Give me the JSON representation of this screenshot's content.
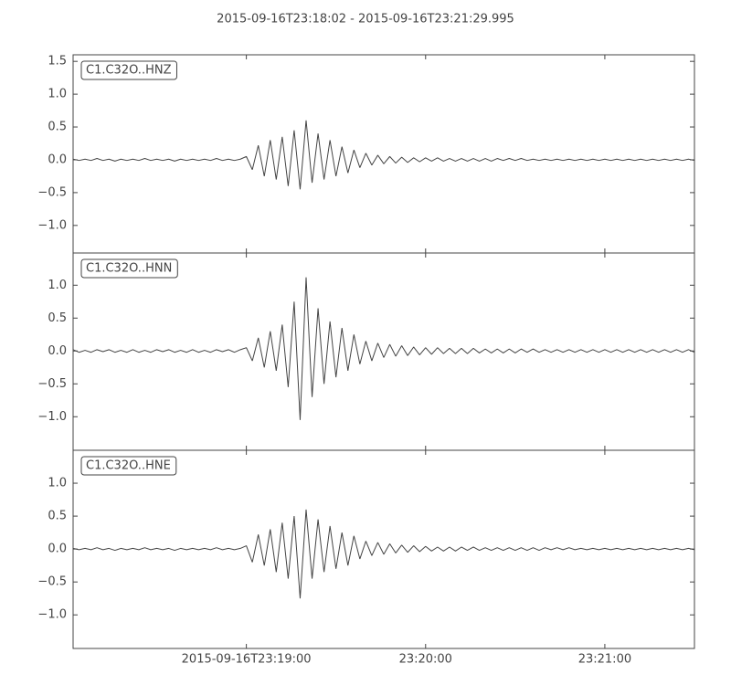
{
  "chart_data": {
    "type": "line",
    "title": "2015-09-16T23:18:02  -  2015-09-16T23:21:29.995",
    "color": "#444444",
    "x": [
      0,
      2,
      4,
      6,
      8,
      10,
      12,
      14,
      16,
      18,
      20,
      22,
      24,
      26,
      28,
      30,
      32,
      34,
      36,
      38,
      40,
      42,
      44,
      46,
      48,
      50,
      52,
      54,
      56,
      58,
      60,
      62,
      64,
      66,
      68,
      70,
      72,
      74,
      76,
      78,
      80,
      82,
      84,
      86,
      88,
      90,
      92,
      94,
      96,
      98,
      100,
      102,
      104,
      106,
      108,
      110,
      112,
      114,
      116,
      118,
      120,
      122,
      124,
      126,
      128,
      130,
      132,
      134,
      136,
      138,
      140,
      142,
      144,
      146,
      148,
      150,
      152,
      154,
      156,
      158,
      160,
      162,
      164,
      166,
      168,
      170,
      172,
      174,
      176,
      178,
      180,
      182,
      184,
      186,
      188,
      190,
      192,
      194,
      196,
      198,
      200,
      202,
      204,
      206,
      208
    ],
    "xlim": [
      0,
      208
    ],
    "xticks": [
      {
        "value": 58,
        "label": "2015-09-16T23:19:00"
      },
      {
        "value": 118,
        "label": "23:20:00"
      },
      {
        "value": 178,
        "label": "23:21:00"
      }
    ],
    "series": [
      {
        "name": "C1.C32O..HNZ",
        "ylim": [
          -1.42,
          1.6
        ],
        "yticks": [
          1.5,
          {
            "value": 1.0,
            "label": "1.0"
          },
          0.5,
          {
            "value": 0.0,
            "label": "0.0"
          },
          {
            "value": -0.5,
            "label": "−0.5"
          },
          {
            "value": -1.0,
            "label": "−1.0"
          }
        ],
        "values": [
          0.01,
          -0.01,
          0.01,
          -0.01,
          0.02,
          -0.01,
          0.01,
          -0.02,
          0.01,
          -0.01,
          0.01,
          -0.01,
          0.02,
          -0.01,
          0.01,
          -0.01,
          0.01,
          -0.02,
          0.01,
          -0.01,
          0.01,
          -0.01,
          0.01,
          -0.01,
          0.02,
          -0.01,
          0.01,
          -0.01,
          0.01,
          0.05,
          -0.15,
          0.22,
          -0.25,
          0.3,
          -0.3,
          0.35,
          -0.4,
          0.45,
          -0.45,
          0.6,
          -0.35,
          0.4,
          -0.3,
          0.3,
          -0.25,
          0.2,
          -0.2,
          0.15,
          -0.12,
          0.1,
          -0.08,
          0.07,
          -0.06,
          0.05,
          -0.05,
          0.04,
          -0.04,
          0.03,
          -0.03,
          0.03,
          -0.02,
          0.03,
          -0.02,
          0.02,
          -0.02,
          0.02,
          -0.02,
          0.02,
          -0.02,
          0.02,
          -0.02,
          0.02,
          -0.01,
          0.02,
          -0.01,
          0.02,
          -0.01,
          0.01,
          -0.01,
          0.01,
          -0.01,
          0.01,
          -0.01,
          0.01,
          -0.01,
          0.01,
          -0.01,
          0.01,
          -0.01,
          0.01,
          -0.01,
          0.01,
          -0.01,
          0.01,
          -0.01,
          0.01,
          -0.01,
          0.01,
          -0.01,
          0.01,
          -0.01,
          0.01,
          -0.01,
          0.01,
          -0.01
        ]
      },
      {
        "name": "C1.C32O..HNN",
        "ylim": [
          -1.51,
          1.49
        ],
        "yticks": [
          {
            "value": 1.0,
            "label": "1.0"
          },
          0.5,
          {
            "value": 0.0,
            "label": "0.0"
          },
          {
            "value": -0.5,
            "label": "−0.5"
          },
          {
            "value": -1.0,
            "label": "−1.0"
          }
        ],
        "values": [
          0.02,
          -0.02,
          0.01,
          -0.02,
          0.02,
          -0.01,
          0.02,
          -0.02,
          0.01,
          -0.02,
          0.02,
          -0.02,
          0.01,
          -0.02,
          0.02,
          -0.01,
          0.02,
          -0.02,
          0.01,
          -0.02,
          0.02,
          -0.02,
          0.01,
          -0.02,
          0.02,
          -0.01,
          0.02,
          -0.02,
          0.02,
          0.05,
          -0.15,
          0.2,
          -0.25,
          0.3,
          -0.3,
          0.4,
          -0.55,
          0.75,
          -1.05,
          1.12,
          -0.7,
          0.65,
          -0.5,
          0.45,
          -0.4,
          0.35,
          -0.3,
          0.25,
          -0.2,
          0.15,
          -0.15,
          0.12,
          -0.1,
          0.1,
          -0.08,
          0.08,
          -0.07,
          0.06,
          -0.06,
          0.05,
          -0.05,
          0.05,
          -0.04,
          0.04,
          -0.04,
          0.04,
          -0.04,
          0.04,
          -0.03,
          0.03,
          -0.03,
          0.03,
          -0.03,
          0.03,
          -0.03,
          0.03,
          -0.02,
          0.03,
          -0.02,
          0.02,
          -0.02,
          0.02,
          -0.02,
          0.02,
          -0.02,
          0.02,
          -0.02,
          0.02,
          -0.02,
          0.02,
          -0.02,
          0.02,
          -0.02,
          0.02,
          -0.02,
          0.02,
          -0.02,
          0.02,
          -0.02,
          0.02,
          -0.02,
          0.02,
          -0.02,
          0.02,
          -0.02
        ]
      },
      {
        "name": "C1.C32O..HNE",
        "ylim": [
          -1.51,
          1.5
        ],
        "yticks": [
          {
            "value": 1.0,
            "label": "1.0"
          },
          0.5,
          {
            "value": 0.0,
            "label": "0.0"
          },
          {
            "value": -0.5,
            "label": "−0.5"
          },
          {
            "value": -1.0,
            "label": "−1.0"
          }
        ],
        "values": [
          0.01,
          -0.01,
          0.01,
          -0.01,
          0.02,
          -0.01,
          0.01,
          -0.02,
          0.01,
          -0.01,
          0.01,
          -0.01,
          0.02,
          -0.01,
          0.01,
          -0.01,
          0.01,
          -0.02,
          0.01,
          -0.01,
          0.01,
          -0.01,
          0.01,
          -0.01,
          0.02,
          -0.01,
          0.01,
          -0.01,
          0.01,
          0.05,
          -0.2,
          0.22,
          -0.25,
          0.3,
          -0.35,
          0.4,
          -0.45,
          0.5,
          -0.75,
          0.6,
          -0.45,
          0.45,
          -0.35,
          0.35,
          -0.3,
          0.25,
          -0.25,
          0.2,
          -0.15,
          0.12,
          -0.1,
          0.1,
          -0.08,
          0.08,
          -0.06,
          0.06,
          -0.05,
          0.05,
          -0.04,
          0.04,
          -0.03,
          0.03,
          -0.03,
          0.03,
          -0.03,
          0.03,
          -0.02,
          0.03,
          -0.02,
          0.02,
          -0.02,
          0.02,
          -0.02,
          0.02,
          -0.02,
          0.02,
          -0.02,
          0.02,
          -0.02,
          0.02,
          -0.01,
          0.02,
          -0.01,
          0.02,
          -0.01,
          0.01,
          -0.01,
          0.01,
          -0.01,
          0.01,
          -0.01,
          0.01,
          -0.01,
          0.01,
          -0.01,
          0.01,
          -0.01,
          0.01,
          -0.01,
          0.01,
          -0.01,
          0.01,
          -0.01,
          0.01,
          -0.01
        ]
      }
    ]
  }
}
